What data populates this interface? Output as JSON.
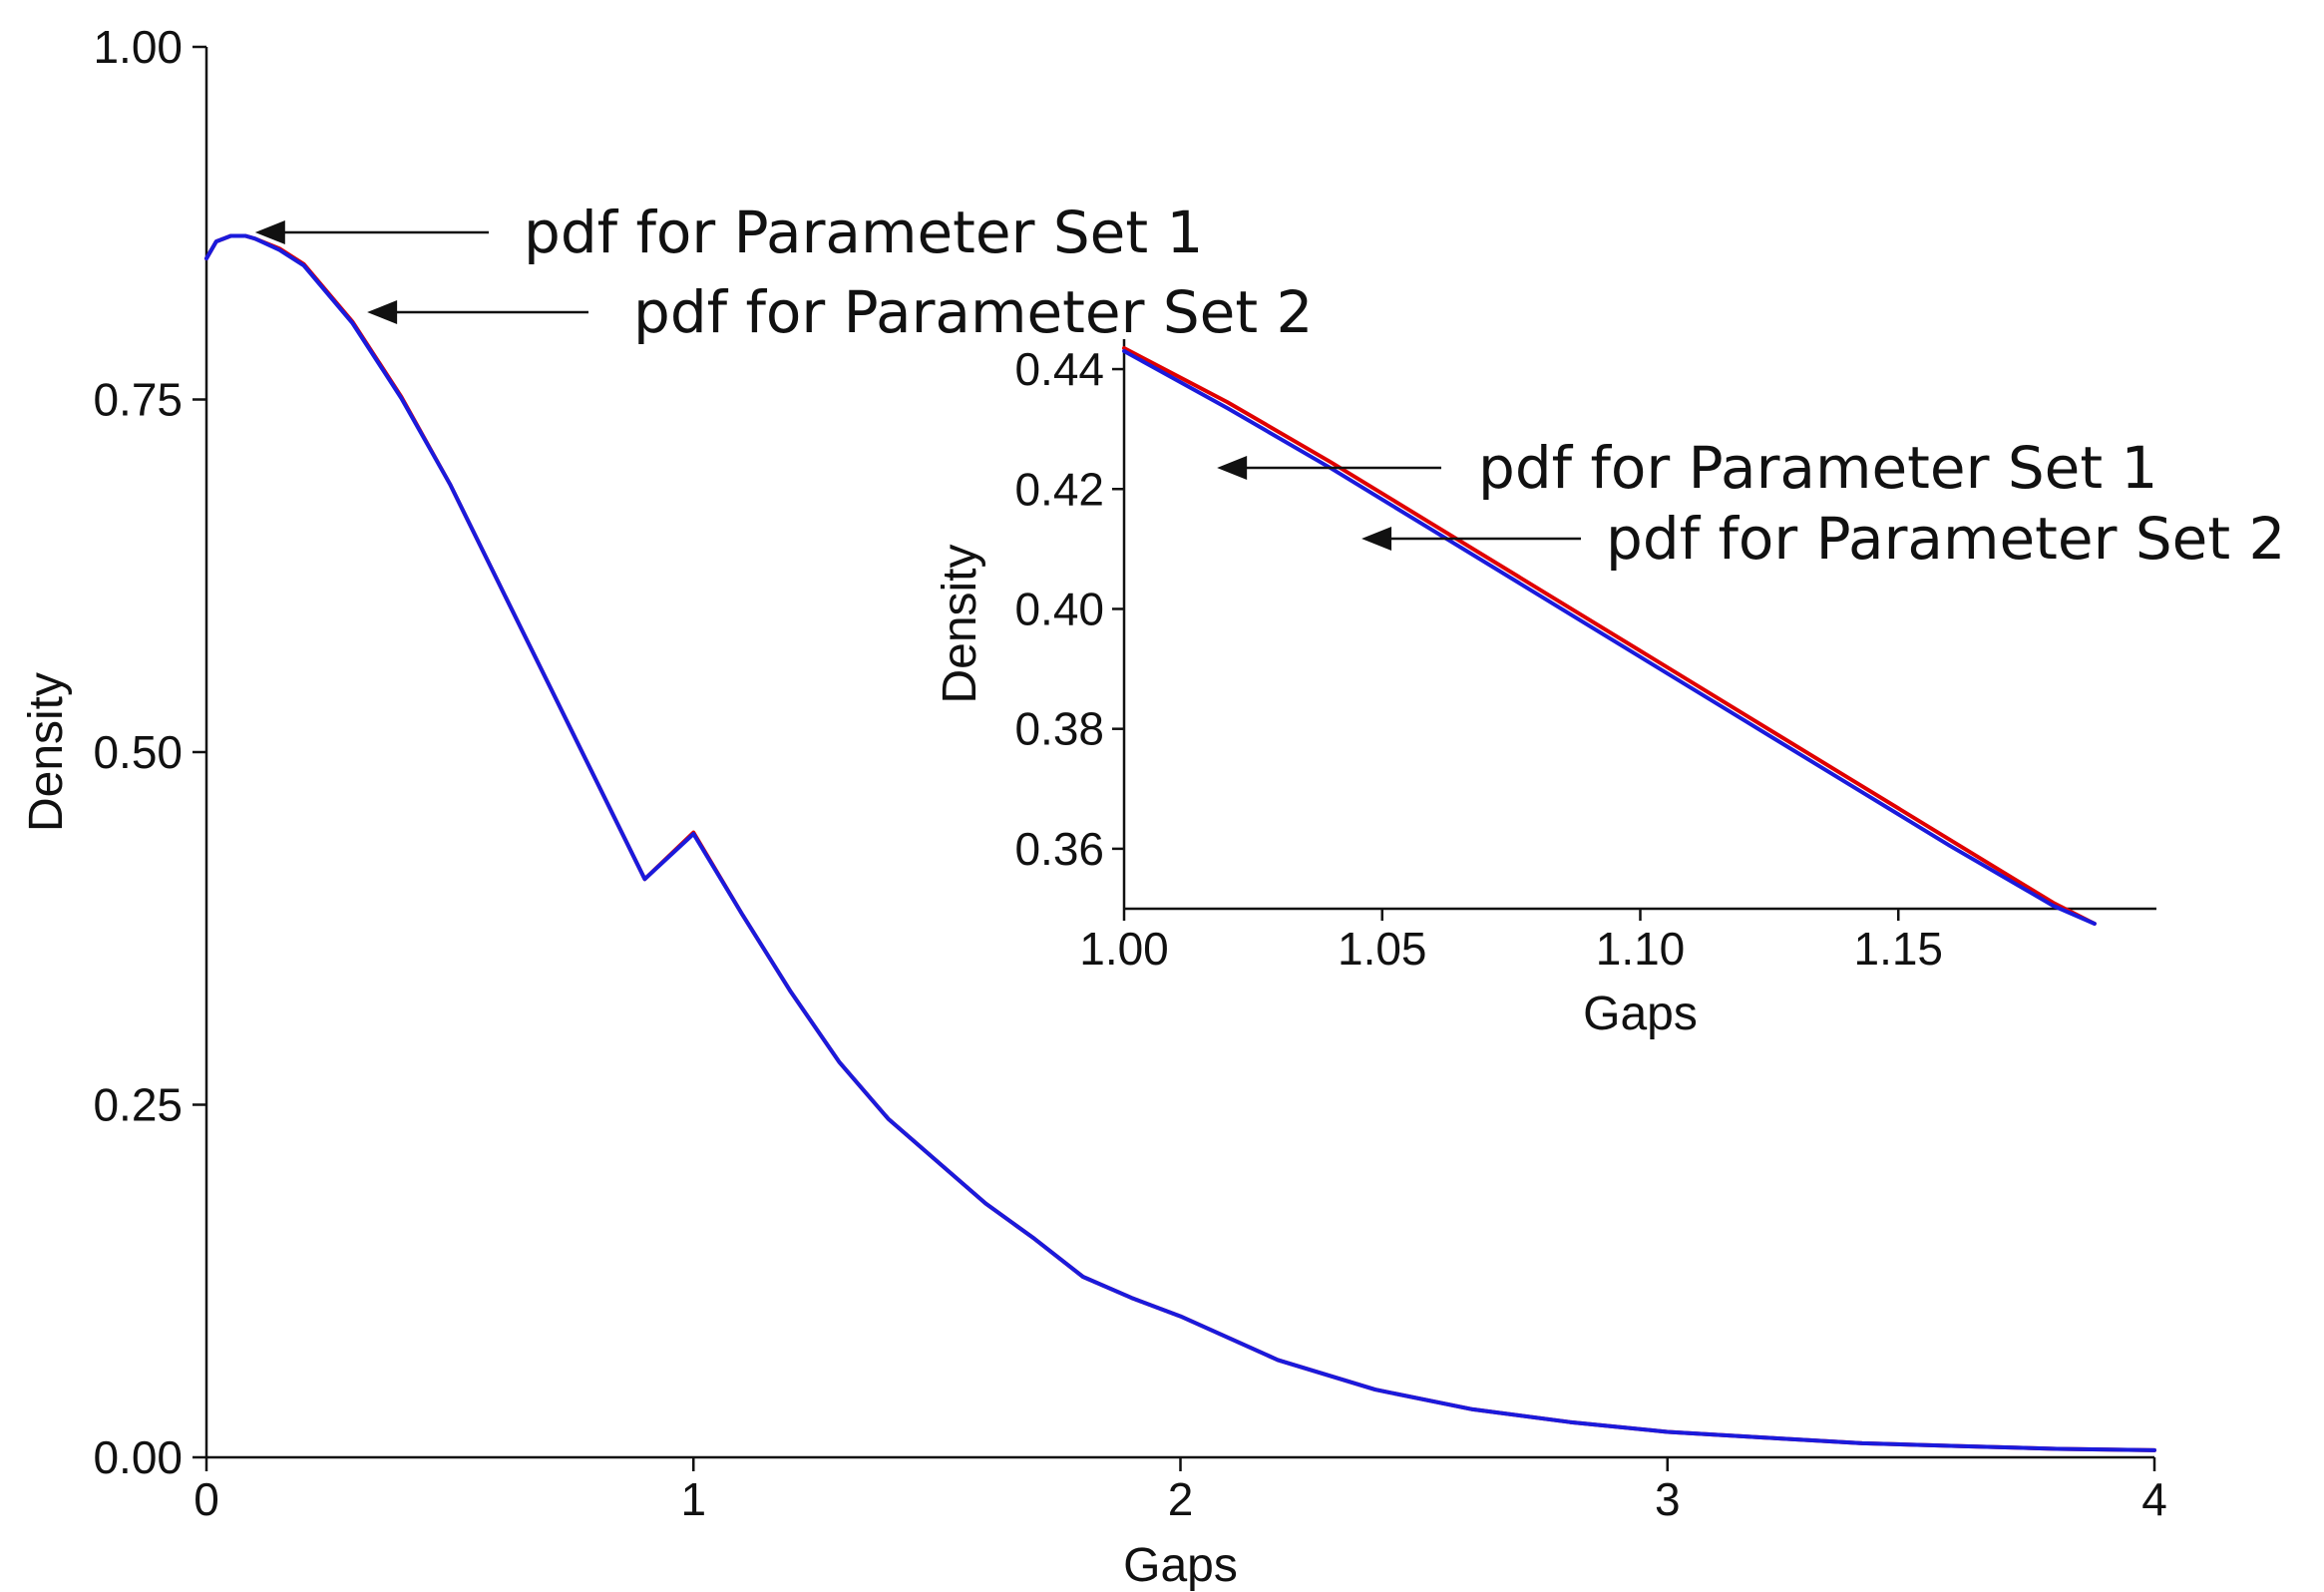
{
  "chart_data": [
    {
      "type": "line",
      "xlabel": "Gaps",
      "ylabel": "Density",
      "xlim": [
        0,
        4
      ],
      "ylim": [
        0,
        1
      ],
      "xticks": [
        "0",
        "1",
        "2",
        "3",
        "4"
      ],
      "yticks": [
        "0.00",
        "0.25",
        "0.50",
        "0.75",
        "1.00"
      ],
      "grid": false,
      "series": [
        {
          "color": "#e00000",
          "x": [
            0,
            0.02,
            0.05,
            0.08,
            0.1,
            0.15,
            0.2,
            0.3,
            0.4,
            0.5,
            0.6,
            0.7,
            0.8,
            0.9,
            1.0,
            1.1,
            1.2,
            1.3,
            1.4,
            1.5,
            1.6,
            1.7,
            1.8,
            1.9,
            2.0,
            2.2,
            2.4,
            2.6,
            2.8,
            3.0,
            3.2,
            3.4,
            3.6,
            3.8,
            4.0
          ],
          "values": [
            0.85,
            0.862,
            0.866,
            0.866,
            0.864,
            0.857,
            0.846,
            0.805,
            0.752,
            0.69,
            0.62,
            0.55,
            0.48,
            0.41,
            0.443,
            0.385,
            0.33,
            0.28,
            0.24,
            0.21,
            0.18,
            0.155,
            0.128,
            0.113,
            0.1,
            0.069,
            0.048,
            0.034,
            0.025,
            0.018,
            0.014,
            0.01,
            0.008,
            0.006,
            0.005
          ]
        },
        {
          "color": "#1a1adc",
          "x": [
            0,
            0.02,
            0.05,
            0.08,
            0.1,
            0.15,
            0.2,
            0.3,
            0.4,
            0.5,
            0.6,
            0.7,
            0.8,
            0.9,
            1.0,
            1.1,
            1.2,
            1.3,
            1.4,
            1.5,
            1.6,
            1.7,
            1.8,
            1.9,
            2.0,
            2.2,
            2.4,
            2.6,
            2.8,
            3.0,
            3.2,
            3.4,
            3.6,
            3.8,
            4.0
          ],
          "values": [
            0.85,
            0.862,
            0.866,
            0.866,
            0.864,
            0.856,
            0.845,
            0.804,
            0.751,
            0.69,
            0.62,
            0.55,
            0.48,
            0.41,
            0.442,
            0.385,
            0.33,
            0.28,
            0.24,
            0.21,
            0.18,
            0.155,
            0.128,
            0.113,
            0.1,
            0.069,
            0.048,
            0.034,
            0.025,
            0.018,
            0.014,
            0.01,
            0.008,
            0.006,
            0.005
          ]
        }
      ],
      "annotations": [
        {
          "text": "pdf for Parameter Set 1",
          "x": 0.1,
          "y": 0.866
        },
        {
          "text": "pdf for Parameter Set 2",
          "x": 0.33,
          "y": 0.81
        }
      ]
    },
    {
      "type": "line",
      "xlabel": "Gaps",
      "ylabel": "Density",
      "xlim": [
        1.0,
        1.2
      ],
      "ylim": [
        0.35,
        0.445
      ],
      "xticks": [
        "1.00",
        "1.05",
        "1.10",
        "1.15"
      ],
      "yticks": [
        "0.36",
        "0.38",
        "0.40",
        "0.42",
        "0.44"
      ],
      "grid": false,
      "series": [
        {
          "color": "#e00000",
          "x": [
            1.0,
            1.02,
            1.04,
            1.06,
            1.08,
            1.1,
            1.12,
            1.14,
            1.16,
            1.18,
            1.188
          ],
          "values": [
            0.4435,
            0.4345,
            0.4245,
            0.414,
            0.4035,
            0.393,
            0.3825,
            0.372,
            0.3615,
            0.351,
            0.3475
          ]
        },
        {
          "color": "#1a1adc",
          "x": [
            1.0,
            1.02,
            1.04,
            1.06,
            1.08,
            1.1,
            1.12,
            1.14,
            1.16,
            1.18,
            1.188
          ],
          "values": [
            0.443,
            0.4335,
            0.4235,
            0.413,
            0.4025,
            0.392,
            0.3815,
            0.371,
            0.3605,
            0.3505,
            0.3475
          ]
        }
      ],
      "annotations": [
        {
          "text": "pdf for Parameter Set 1",
          "x": 1.018,
          "y": 0.4345
        },
        {
          "text": "pdf for Parameter Set 2",
          "x": 1.046,
          "y": 0.4205
        }
      ]
    }
  ]
}
